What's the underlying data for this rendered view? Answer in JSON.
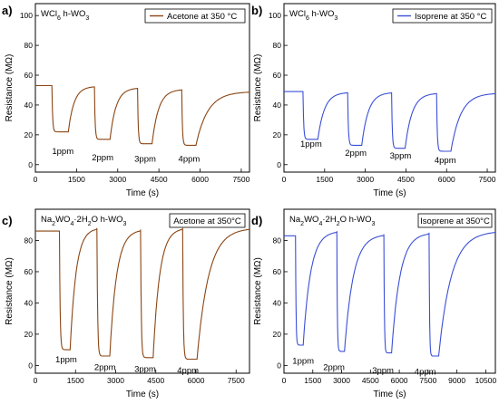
{
  "chart_data": [
    {
      "panel": "a)",
      "type": "line",
      "material": "WCl6 h-WO3",
      "legend": "Acetone at 350 °C",
      "color": "#8B4513",
      "xlabel": "Time (s)",
      "ylabel": "Resistance (MΩ)",
      "xlim": [
        0,
        7800
      ],
      "ylim": [
        -5,
        108
      ],
      "xticks": [
        0,
        1500,
        3000,
        4500,
        6000,
        7500
      ],
      "yticks": [
        0,
        20,
        40,
        60,
        80,
        100
      ],
      "annotations": [
        {
          "text": "1ppm",
          "x": 1000,
          "y": 7
        },
        {
          "text": "2ppm",
          "x": 2450,
          "y": 3
        },
        {
          "text": "3ppm",
          "x": 4000,
          "y": 2
        },
        {
          "text": "4ppm",
          "x": 5600,
          "y": 2
        }
      ],
      "events": [
        {
          "on": 600,
          "off": 1200,
          "low": 22,
          "base": 53,
          "rec": 52.5
        },
        {
          "on": 2150,
          "off": 2720,
          "low": 17,
          "base": 52.5,
          "rec": 51.5
        },
        {
          "on": 3720,
          "off": 4250,
          "low": 14,
          "base": 51.5,
          "rec": 50.5
        },
        {
          "on": 5330,
          "off": 5850,
          "low": 13,
          "base": 50.5,
          "rec": 49
        }
      ],
      "x_end": 7800,
      "y_start": 53
    },
    {
      "panel": "b)",
      "type": "line",
      "material": "WCl6 h-WO3",
      "legend": "Isoprene at 350 °C",
      "color": "#3a4fd6",
      "xlabel": "Time (s)",
      "ylabel": "Resistance (MΩ)",
      "xlim": [
        0,
        7800
      ],
      "ylim": [
        -5,
        108
      ],
      "xticks": [
        0,
        1500,
        3000,
        4500,
        6000,
        7500
      ],
      "yticks": [
        0,
        20,
        40,
        60,
        80,
        100
      ],
      "annotations": [
        {
          "text": "1ppm",
          "x": 1000,
          "y": 12
        },
        {
          "text": "2ppm",
          "x": 2650,
          "y": 6
        },
        {
          "text": "3ppm",
          "x": 4300,
          "y": 4
        },
        {
          "text": "4ppm",
          "x": 5950,
          "y": 1
        }
      ],
      "events": [
        {
          "on": 700,
          "off": 1250,
          "low": 17,
          "base": 49,
          "rec": 48.5
        },
        {
          "on": 2350,
          "off": 2870,
          "low": 13,
          "base": 48.5,
          "rec": 48.5
        },
        {
          "on": 3970,
          "off": 4470,
          "low": 11,
          "base": 48.5,
          "rec": 48
        },
        {
          "on": 5630,
          "off": 6160,
          "low": 9,
          "base": 48,
          "rec": 48
        }
      ],
      "x_end": 7800,
      "y_start": 49
    },
    {
      "panel": "c)",
      "type": "line",
      "material": "Na2WO4·2H2O h-WO3",
      "legend": "Acetone at 350°C",
      "color": "#8B4513",
      "xlabel": "Time (s)",
      "ylabel": "Resistance (MΩ)",
      "xlim": [
        0,
        8000
      ],
      "ylim": [
        -5,
        100
      ],
      "xticks": [
        0,
        1500,
        3000,
        4500,
        6000,
        7500
      ],
      "yticks": [
        0,
        20,
        40,
        60,
        80
      ],
      "annotations": [
        {
          "text": "1ppm",
          "x": 1150,
          "y": 2
        },
        {
          "text": "2ppm",
          "x": 2600,
          "y": -3
        },
        {
          "text": "3ppm",
          "x": 4100,
          "y": -4
        },
        {
          "text": "4ppm",
          "x": 5700,
          "y": -5
        }
      ],
      "events": [
        {
          "on": 900,
          "off": 1300,
          "low": 10,
          "base": 86,
          "rec": 88
        },
        {
          "on": 2300,
          "off": 2780,
          "low": 6,
          "base": 88,
          "rec": 87
        },
        {
          "on": 3930,
          "off": 4400,
          "low": 5,
          "base": 87,
          "rec": 88
        },
        {
          "on": 5500,
          "off": 6040,
          "low": 4,
          "base": 88,
          "rec": 88
        }
      ],
      "x_end": 8000,
      "y_start": 86
    },
    {
      "panel": "d)",
      "type": "line",
      "material": "Na2WO4·2H2O h-WO3",
      "legend": "Isoprene at 350°C",
      "color": "#3a4fd6",
      "xlabel": "Time (s)",
      "ylabel": "Resistance (MΩ)",
      "xlim": [
        0,
        11000
      ],
      "ylim": [
        -5,
        100
      ],
      "xticks": [
        0,
        1500,
        3000,
        4500,
        6000,
        7500,
        9000,
        10500
      ],
      "yticks": [
        0,
        20,
        40,
        60,
        80
      ],
      "annotations": [
        {
          "text": "1ppm",
          "x": 1000,
          "y": 1
        },
        {
          "text": "2ppm",
          "x": 2600,
          "y": -3
        },
        {
          "text": "3ppm",
          "x": 5150,
          "y": -5
        },
        {
          "text": "4ppm",
          "x": 7350,
          "y": -6
        }
      ],
      "events": [
        {
          "on": 600,
          "off": 1000,
          "low": 13,
          "base": 83,
          "rec": 86
        },
        {
          "on": 2750,
          "off": 3150,
          "low": 9,
          "base": 86,
          "rec": 84
        },
        {
          "on": 5200,
          "off": 5600,
          "low": 8,
          "base": 84,
          "rec": 85
        },
        {
          "on": 7550,
          "off": 8050,
          "low": 6,
          "base": 85,
          "rec": 86
        }
      ],
      "x_end": 11000,
      "y_start": 83
    }
  ]
}
